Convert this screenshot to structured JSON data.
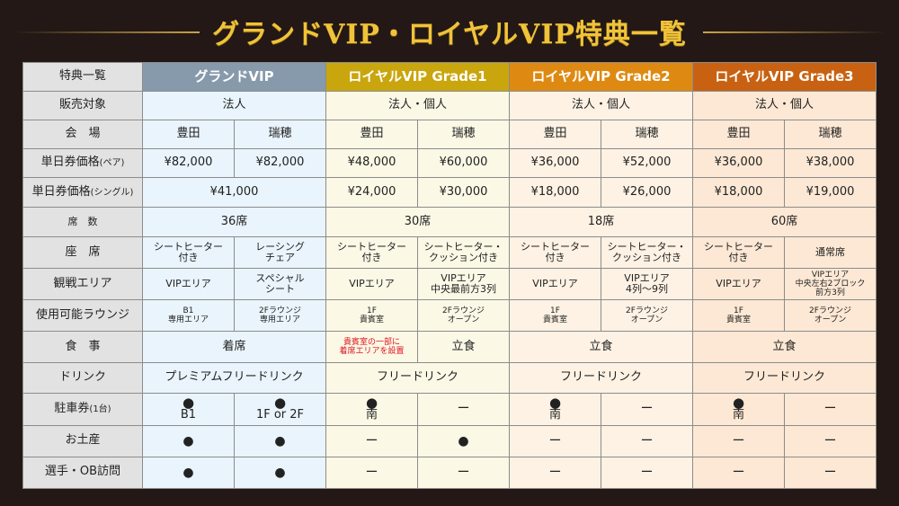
{
  "title": "グランドVIP・ロイヤルVIP特典一覧",
  "corner": "特典一覧",
  "columns": [
    "グランドVIP",
    "ロイヤルVIP Grade1",
    "ロイヤルVIP Grade2",
    "ロイヤルVIP Grade3"
  ],
  "rows": {
    "target": {
      "label": "販売対象",
      "values": [
        "法人",
        "法人・個人",
        "法人・個人",
        "法人・個人"
      ]
    },
    "venue": {
      "label": "会　場",
      "values": [
        "豊田",
        "瑞穂",
        "豊田",
        "瑞穂",
        "豊田",
        "瑞穂",
        "豊田",
        "瑞穂"
      ]
    },
    "pair_price": {
      "label": "単日券価格",
      "label_suffix": "(ペア)",
      "values": [
        "¥82,000",
        "¥82,000",
        "¥48,000",
        "¥60,000",
        "¥36,000",
        "¥52,000",
        "¥36,000",
        "¥38,000"
      ]
    },
    "single_price": {
      "label": "単日券価格",
      "label_suffix": "(シングル)",
      "values": [
        "¥41,000",
        "¥24,000",
        "¥30,000",
        "¥18,000",
        "¥26,000",
        "¥18,000",
        "¥19,000"
      ]
    },
    "seats_count": {
      "label": "席　数",
      "values": [
        "36席",
        "30席",
        "18席",
        "60席"
      ]
    },
    "seat": {
      "label": "座　席",
      "values": [
        [
          "シートヒーター",
          "付き"
        ],
        [
          "レーシング",
          "チェア"
        ],
        [
          "シートヒーター",
          "付き"
        ],
        [
          "シートヒーター・",
          "クッション付き"
        ],
        [
          "シートヒーター",
          "付き"
        ],
        [
          "シートヒーター・",
          "クッション付き"
        ],
        [
          "シートヒーター",
          "付き"
        ],
        [
          "通常席"
        ]
      ]
    },
    "area": {
      "label": "観戦エリア",
      "values": [
        [
          "VIPエリア"
        ],
        [
          "スペシャル",
          "シート"
        ],
        [
          "VIPエリア"
        ],
        [
          "VIPエリア",
          "中央最前方3列"
        ],
        [
          "VIPエリア"
        ],
        [
          "VIPエリア",
          "4列～9列"
        ],
        [
          "VIPエリア"
        ],
        [
          "VIPエリア",
          "中央左右2ブロック",
          "前方3列"
        ]
      ]
    },
    "lounge": {
      "label": "使用可能ラウンジ",
      "values": [
        [
          "B1",
          "専用エリア"
        ],
        [
          "2Fラウンジ",
          "専用エリア"
        ],
        [
          "1F",
          "貴賓室"
        ],
        [
          "2Fラウンジ",
          "オープン"
        ],
        [
          "1F",
          "貴賓室"
        ],
        [
          "2Fラウンジ",
          "オープン"
        ],
        [
          "1F",
          "貴賓室"
        ],
        [
          "2Fラウンジ",
          "オープン"
        ]
      ]
    },
    "meal": {
      "label": "食　事",
      "values": [
        "着席",
        [
          "貴賓室の一部に",
          "着席エリアを設置"
        ],
        "立食",
        "立食",
        "立食"
      ]
    },
    "drink": {
      "label": "ドリンク",
      "values": [
        "プレミアムフリードリンク",
        "フリードリンク",
        "フリードリンク",
        "フリードリンク"
      ]
    },
    "parking": {
      "label": "駐車券",
      "label_suffix": "(1台)",
      "dot": "●",
      "dash": "ー",
      "values": [
        "B1",
        "1F or 2F",
        "南",
        "ー",
        "南",
        "ー",
        "南",
        "ー"
      ]
    },
    "souvenir": {
      "label": "お土産",
      "values": [
        "●",
        "●",
        "ー",
        "●",
        "ー",
        "ー",
        "ー",
        "ー"
      ]
    },
    "visit": {
      "label": "選手・OB訪問",
      "values": [
        "●",
        "●",
        "ー",
        "ー",
        "ー",
        "ー",
        "ー",
        "ー"
      ]
    }
  },
  "colors": {
    "background": "#231815",
    "title": "#f0c33a",
    "grand_header": "#879aab",
    "grade1_header": "#c9a60e",
    "grade2_header": "#de8a12",
    "grade3_header": "#c86212",
    "note_red": "#e0121c"
  }
}
